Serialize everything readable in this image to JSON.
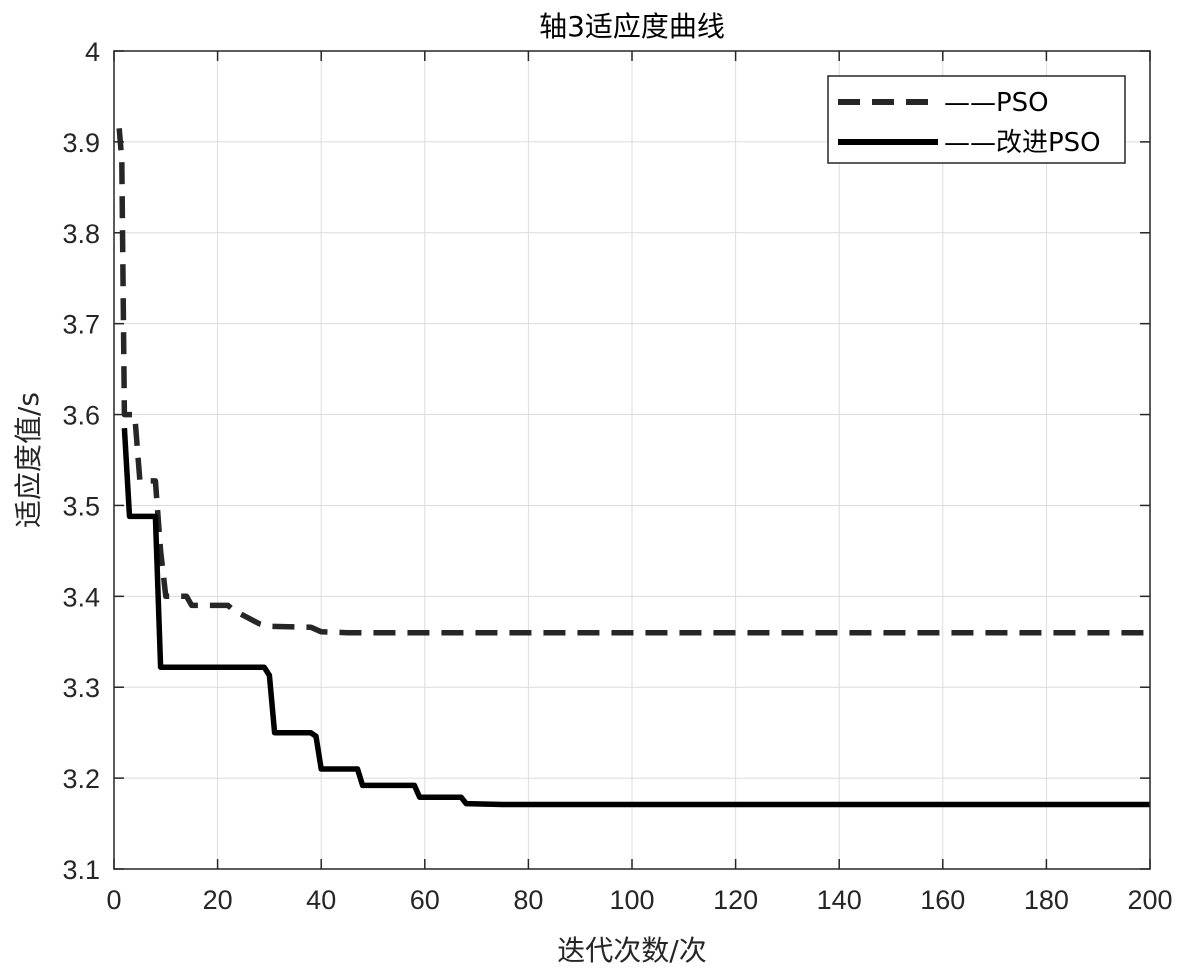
{
  "chart_data": {
    "type": "line",
    "title": "轴3适应度曲线",
    "xlabel": "迭代次数/次",
    "ylabel": "适应度值/s",
    "xlim": [
      0,
      200
    ],
    "ylim": [
      3.1,
      4.0
    ],
    "xticks": [
      0,
      20,
      40,
      60,
      80,
      100,
      120,
      140,
      160,
      180,
      200
    ],
    "yticks": [
      3.1,
      3.2,
      3.3,
      3.4,
      3.5,
      3.6,
      3.7,
      3.8,
      3.9,
      4.0
    ],
    "xtick_labels": [
      "0",
      "20",
      "40",
      "60",
      "80",
      "100",
      "120",
      "140",
      "160",
      "180",
      "200"
    ],
    "ytick_labels": [
      "3.1",
      "3.2",
      "3.3",
      "3.4",
      "3.5",
      "3.6",
      "3.7",
      "3.8",
      "3.9",
      "4"
    ],
    "grid": true,
    "legend_position": "top-right",
    "series": [
      {
        "name": "——PSO",
        "style": "dashed",
        "color": "#262626",
        "x": [
          1,
          1.5,
          2,
          4,
          5,
          8,
          9,
          10,
          14,
          15,
          22,
          23,
          28,
          30,
          38,
          40,
          45,
          50,
          100,
          150,
          200
        ],
        "y": [
          3.915,
          3.88,
          3.6,
          3.6,
          3.527,
          3.527,
          3.45,
          3.4,
          3.4,
          3.39,
          3.39,
          3.385,
          3.37,
          3.367,
          3.366,
          3.361,
          3.36,
          3.36,
          3.36,
          3.36,
          3.36
        ]
      },
      {
        "name": "——改进PSO",
        "style": "solid",
        "color": "#000000",
        "x": [
          2,
          3,
          8,
          9,
          29,
          30,
          31,
          38,
          39,
          40,
          47,
          48,
          58,
          59,
          67,
          68,
          75,
          100,
          150,
          200
        ],
        "y": [
          3.585,
          3.488,
          3.488,
          3.322,
          3.322,
          3.313,
          3.25,
          3.25,
          3.246,
          3.21,
          3.21,
          3.192,
          3.192,
          3.179,
          3.179,
          3.172,
          3.171,
          3.171,
          3.171,
          3.171
        ]
      }
    ]
  }
}
